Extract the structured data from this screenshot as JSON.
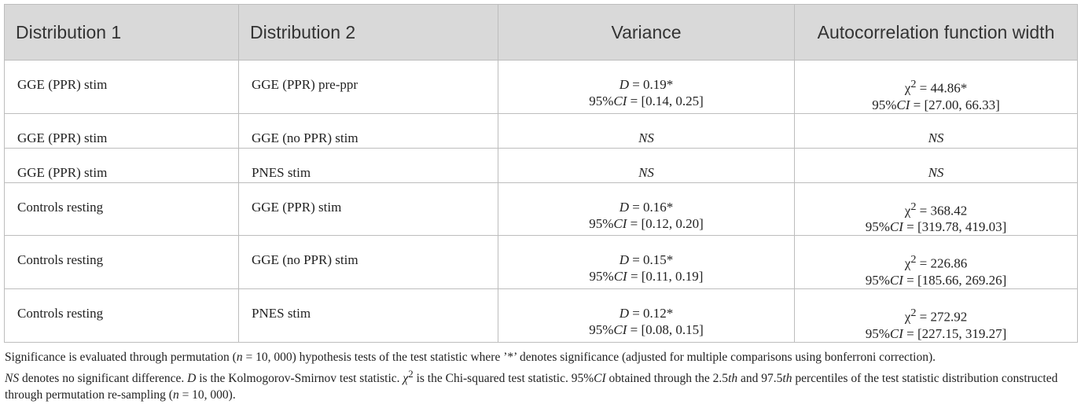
{
  "headers": [
    "Distribution 1",
    "Distribution 2",
    "Variance",
    "Autocorrelation function width"
  ],
  "rows": [
    {
      "d1": "GGE (PPR) stim",
      "d2": "GGE (PPR) pre-ppr",
      "var_stat": "D",
      "var_val": " = 0.19*",
      "var_ci": " = [0.14, 0.25]",
      "acf_stat": "χ",
      "acf_val": " = 44.86*",
      "acf_ci": " = [27.00, 66.33]"
    },
    {
      "d1": "GGE (PPR) stim",
      "d2": "GGE (no PPR) stim",
      "var_ns": "NS",
      "acf_ns": "NS"
    },
    {
      "d1": "GGE (PPR) stim",
      "d2": "PNES stim",
      "var_ns": "NS",
      "acf_ns": "NS"
    },
    {
      "d1": "Controls resting",
      "d2": "GGE (PPR) stim",
      "var_stat": "D",
      "var_val": " = 0.16*",
      "var_ci": " = [0.12, 0.20]",
      "acf_stat": "χ",
      "acf_val": " = 368.42",
      "acf_ci": " = [319.78, 419.03]"
    },
    {
      "d1": "Controls resting",
      "d2": "GGE (no PPR) stim",
      "var_stat": "D",
      "var_val": " = 0.15*",
      "var_ci": " = [0.11, 0.19]",
      "acf_stat": "χ",
      "acf_val": " = 226.86",
      "acf_ci": " = [185.66, 269.26]"
    },
    {
      "d1": "Controls resting",
      "d2": "PNES stim",
      "var_stat": "D",
      "var_val": " = 0.12*",
      "var_ci": " = [0.08, 0.15]",
      "acf_stat": "χ",
      "acf_val": " = 272.92",
      "acf_ci": " = [227.15, 319.27]"
    }
  ],
  "ci_prefix": "95%",
  "ci_label": "CI",
  "sq": "2",
  "footnote": {
    "p1": "Significance is evaluated through permutation (",
    "n1": "n",
    "p2": " = 10, 000) hypothesis tests of the test statistic where ’*’ denotes significance (adjusted for multiple comparisons using bonferroni correction).",
    "ns": "NS",
    "p3": " denotes no significant difference. ",
    "d": "D",
    "p4": " is the Kolmogorov-Smirnov test statistic. ",
    "chi": "χ",
    "sq": "2",
    "p5": " is the Chi-squared test statistic. 95%",
    "ci": "CI",
    "p6": " obtained through the 2.5",
    "th1": "th",
    "p7": " and 97.5",
    "th2": "th",
    "p8": " percentiles of the test statistic distribution constructed through permutation re-sampling (",
    "n2": "n",
    "p9": " = 10, 000)."
  }
}
